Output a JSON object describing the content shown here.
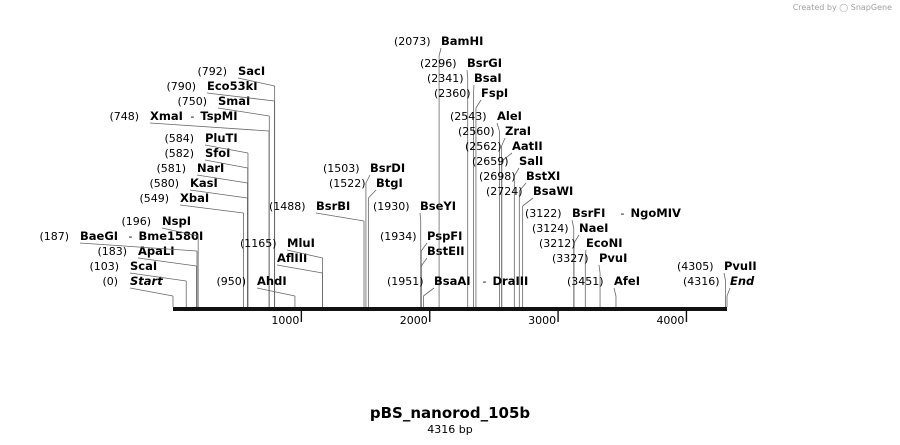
{
  "credit": {
    "prefix": "Created by",
    "brand": "SnapGene"
  },
  "map": {
    "name": "pBS_nanorod_105b",
    "length_label": "4316 bp",
    "length": 4316,
    "ticks": [
      "1000",
      "2000",
      "3000",
      "4000"
    ],
    "sites": [
      {
        "names": [
          "Start"
        ],
        "pos": "(0)",
        "bp": 0,
        "italic": true
      },
      {
        "names": [
          "ScaI"
        ],
        "pos": "(103)",
        "bp": 103
      },
      {
        "names": [
          "ApaLI"
        ],
        "pos": "(183)",
        "bp": 183
      },
      {
        "names": [
          "BaeGI",
          "Bme1580I"
        ],
        "pos": "(187)",
        "bp": 187
      },
      {
        "names": [
          "NspI"
        ],
        "pos": "(196)",
        "bp": 196
      },
      {
        "names": [
          "XbaI"
        ],
        "pos": "(549)",
        "bp": 549
      },
      {
        "names": [
          "KasI"
        ],
        "pos": "(580)",
        "bp": 580
      },
      {
        "names": [
          "NarI"
        ],
        "pos": "(581)",
        "bp": 581
      },
      {
        "names": [
          "SfoI"
        ],
        "pos": "(582)",
        "bp": 582
      },
      {
        "names": [
          "PluTI"
        ],
        "pos": "(584)",
        "bp": 584
      },
      {
        "names": [
          "XmaI",
          "TspMI"
        ],
        "pos": "(748)",
        "bp": 748
      },
      {
        "names": [
          "SmaI"
        ],
        "pos": "(750)",
        "bp": 750
      },
      {
        "names": [
          "Eco53kI"
        ],
        "pos": "(790)",
        "bp": 790
      },
      {
        "names": [
          "SacI"
        ],
        "pos": "(792)",
        "bp": 792
      },
      {
        "names": [
          "AhdI"
        ],
        "pos": "(950)",
        "bp": 950
      },
      {
        "names": [
          "AflIII"
        ],
        "pos": "",
        "bp": 1165
      },
      {
        "names": [
          "MluI"
        ],
        "pos": "(1165)",
        "bp": 1165
      },
      {
        "names": [
          "BsrBI"
        ],
        "pos": "(1488)",
        "bp": 1488
      },
      {
        "names": [
          "BtgI"
        ],
        "pos": "(1522)",
        "bp": 1522
      },
      {
        "names": [
          "BsrDI"
        ],
        "pos": "(1503)",
        "bp": 1503
      },
      {
        "names": [
          "BseYI"
        ],
        "pos": "(1930)",
        "bp": 1930
      },
      {
        "names": [
          "BstEII"
        ],
        "pos": "",
        "bp": 1934
      },
      {
        "names": [
          "PspFI"
        ],
        "pos": "(1934)",
        "bp": 1934
      },
      {
        "names": [
          "BamHI"
        ],
        "pos": "(2073)",
        "bp": 2073
      },
      {
        "names": [
          "BsrGI"
        ],
        "pos": "(2296)",
        "bp": 2296
      },
      {
        "names": [
          "BsaI"
        ],
        "pos": "(2341)",
        "bp": 2341
      },
      {
        "names": [
          "FspI"
        ],
        "pos": "(2360)",
        "bp": 2360
      },
      {
        "names": [
          "AleI"
        ],
        "pos": "(2543)",
        "bp": 2543
      },
      {
        "names": [
          "ZraI"
        ],
        "pos": "(2560)",
        "bp": 2560
      },
      {
        "names": [
          "AatII"
        ],
        "pos": "(2562)",
        "bp": 2562
      },
      {
        "names": [
          "SalI"
        ],
        "pos": "(2659)",
        "bp": 2659
      },
      {
        "names": [
          "BstXI"
        ],
        "pos": "(2698)",
        "bp": 2698
      },
      {
        "names": [
          "BsaWI"
        ],
        "pos": "(2724)",
        "bp": 2724
      },
      {
        "names": [
          "BsaAI",
          "DraIII"
        ],
        "pos": "(1951)",
        "bp": 1951
      },
      {
        "names": [
          "BsrFI",
          "NgoMIV"
        ],
        "pos": "(3122)",
        "bp": 3122
      },
      {
        "names": [
          "NaeI"
        ],
        "pos": "(3124)",
        "bp": 3124
      },
      {
        "names": [
          "EcoNI"
        ],
        "pos": "(3212)",
        "bp": 3212
      },
      {
        "names": [
          "PvuI"
        ],
        "pos": "(3327)",
        "bp": 3327
      },
      {
        "names": [
          "AfeI"
        ],
        "pos": "(3451)",
        "bp": 3451
      },
      {
        "names": [
          "PvuII"
        ],
        "pos": "(4305)",
        "bp": 4305
      },
      {
        "names": [
          "End"
        ],
        "pos": "(4316)",
        "bp": 4316,
        "italic": true
      }
    ]
  }
}
